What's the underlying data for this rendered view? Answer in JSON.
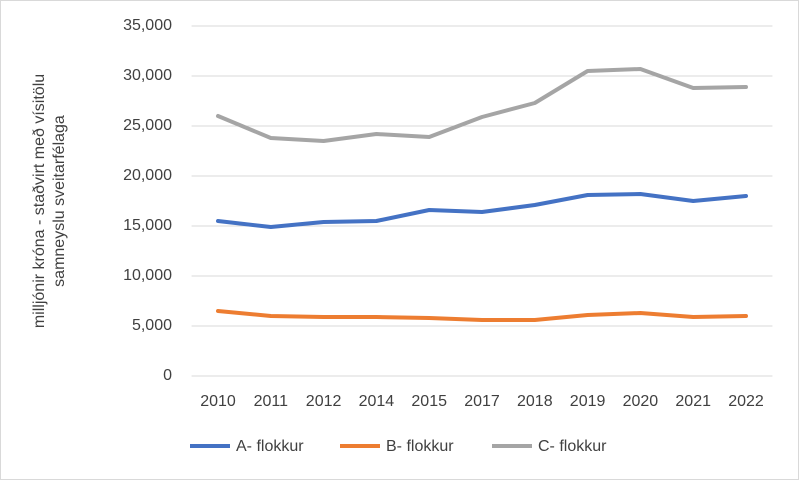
{
  "chart_data": {
    "type": "line",
    "ylabel": [
      "milljónir króna - staðvirt með vísitölu",
      "samneyslu sveitarfélaga"
    ],
    "categories": [
      "2010",
      "2011",
      "2012",
      "2014",
      "2015",
      "2017",
      "2018",
      "2019",
      "2020",
      "2021",
      "2022"
    ],
    "series": [
      {
        "name": "A- flokkur",
        "color": "#4472c4",
        "values": [
          15500,
          14900,
          15400,
          15500,
          16600,
          16400,
          17100,
          18100,
          18200,
          17500,
          18000
        ]
      },
      {
        "name": "B- flokkur",
        "color": "#ed7d31",
        "values": [
          6500,
          6000,
          5900,
          5900,
          5800,
          5600,
          5600,
          6100,
          6300,
          5900,
          6000
        ]
      },
      {
        "name": "C- flokkur",
        "color": "#a5a5a5",
        "values": [
          26000,
          23800,
          23500,
          24200,
          23900,
          25900,
          27300,
          30500,
          30700,
          28800,
          28900
        ]
      }
    ],
    "ylim": [
      0,
      35000
    ],
    "yticks": [
      0,
      {
        "value": 5000,
        "label": "5,000"
      },
      {
        "value": 10000,
        "label": "10,000"
      },
      {
        "value": 15000,
        "label": "15,000"
      },
      {
        "value": 20000,
        "label": "20,000"
      },
      {
        "value": 25000,
        "label": "25,000"
      },
      {
        "value": 30000,
        "label": "30,000"
      },
      {
        "value": 35000,
        "label": "35,000"
      }
    ],
    "grid": true,
    "legend": "bottom"
  }
}
